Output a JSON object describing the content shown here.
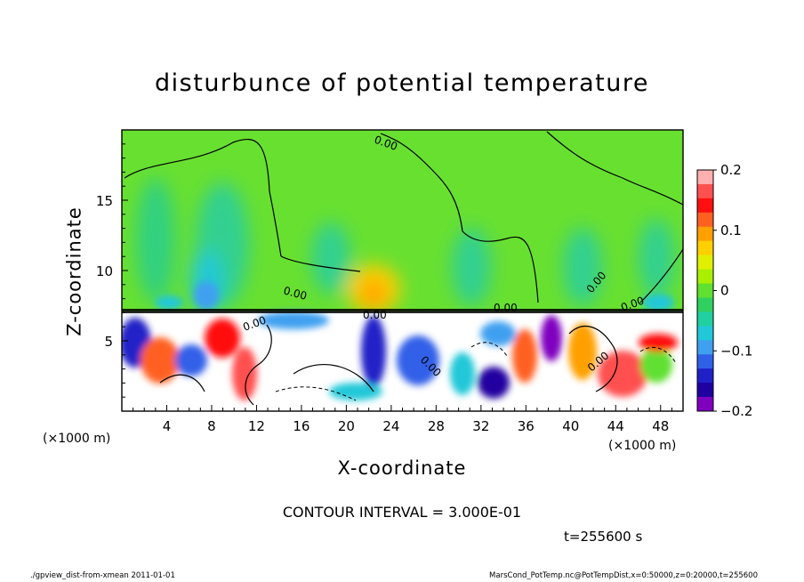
{
  "chart_data": {
    "type": "heatmap",
    "title": "disturbunce of potential temperature",
    "xlabel": "X-coordinate",
    "ylabel": "Z-coordinate",
    "x_unit": "(×1000 m)",
    "xlim": [
      0,
      50
    ],
    "ylim": [
      0,
      20
    ],
    "x_ticks": [
      4,
      8,
      12,
      16,
      20,
      24,
      28,
      32,
      36,
      40,
      44,
      48
    ],
    "y_ticks": [
      5,
      10,
      15
    ],
    "colorbar": {
      "range": [
        -0.2,
        0.2
      ],
      "ticks": [
        0.2,
        0.1,
        0,
        -0.1,
        -0.2
      ],
      "tick_labels": [
        "0.2",
        "0.1",
        "0",
        "−0.1",
        "−0.2"
      ],
      "colors": [
        "#ffb0b0",
        "#ff5050",
        "#ff1010",
        "#ff6020",
        "#ffa000",
        "#ffd000",
        "#e0f000",
        "#a8f000",
        "#60e030",
        "#30d060",
        "#20d0a0",
        "#20c8d8",
        "#40a0f0",
        "#3060e8",
        "#2020c8",
        "#2000a0",
        "#8000c0"
      ]
    },
    "contour_interval": "3.000E-01",
    "contour_labels": [
      "0.00",
      "0.00",
      "0.00",
      "0.00",
      "0.00",
      "0.00",
      "0.00",
      "0.00",
      "0.00"
    ],
    "upper_layer": {
      "z_top": 20,
      "z_bottom": 7.3,
      "value": 0.0
    },
    "lower_layer": {
      "z_top": 7.3,
      "z_bottom": 0,
      "value_range": [
        -0.2,
        0.2
      ]
    },
    "annotations": {
      "contour_interval_text": "CONTOUR INTERVAL = 3.000E-01",
      "time_text": "t=255600 s",
      "footer_left": "./gpview_dist-from-xmean  2011-01-01",
      "footer_right": "MarsCond_PotTemp.nc@PotTempDist,x=0:50000,z=0:20000,t=255600"
    }
  }
}
